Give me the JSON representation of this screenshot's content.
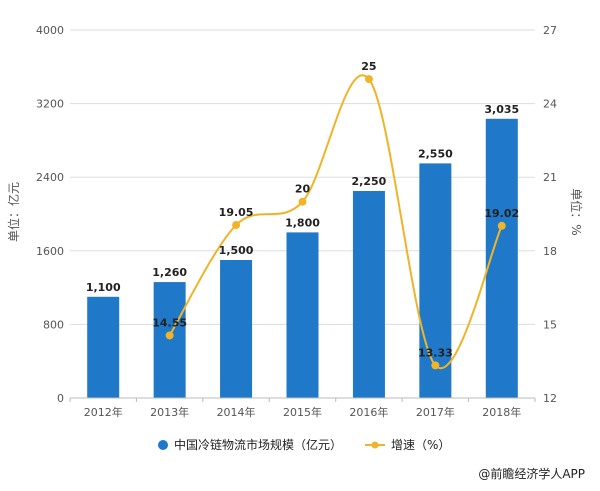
{
  "chart_data": {
    "type": "bar",
    "categories": [
      "2012年",
      "2013年",
      "2014年",
      "2015年",
      "2016年",
      "2017年",
      "2018年"
    ],
    "series": [
      {
        "name": "中国冷链物流市场规模（亿元）",
        "type": "bar",
        "axis": "left",
        "color": "#1f78c8",
        "values": [
          1100,
          1260,
          1500,
          1800,
          2250,
          2550,
          3035
        ],
        "labels": [
          "1,100",
          "1,260",
          "1,500",
          "1,800",
          "2,250",
          "2,550",
          "3,035"
        ]
      },
      {
        "name": "增速（%）",
        "type": "line",
        "axis": "right",
        "color": "#f0b429",
        "values": [
          null,
          14.55,
          19.05,
          20,
          25,
          13.33,
          19.02
        ],
        "labels": [
          "",
          "14.55",
          "19.05",
          "20",
          "25",
          "13.33",
          "19.02"
        ]
      }
    ],
    "y_left": {
      "label": "单位：亿元",
      "ylim": [
        0,
        4000
      ],
      "ticks": [
        "0",
        "800",
        "1600",
        "2400",
        "3200",
        "4000"
      ],
      "tick_values": [
        0,
        800,
        1600,
        2400,
        3200,
        4000
      ]
    },
    "y_right": {
      "label": "单位：%",
      "ylim": [
        12,
        27
      ],
      "ticks": [
        "12",
        "15",
        "18",
        "21",
        "24",
        "27"
      ],
      "tick_values": [
        12,
        15,
        18,
        21,
        24,
        27
      ]
    },
    "grid": true,
    "legend_position": "bottom-center"
  },
  "source": "@前瞻经济学人APP"
}
